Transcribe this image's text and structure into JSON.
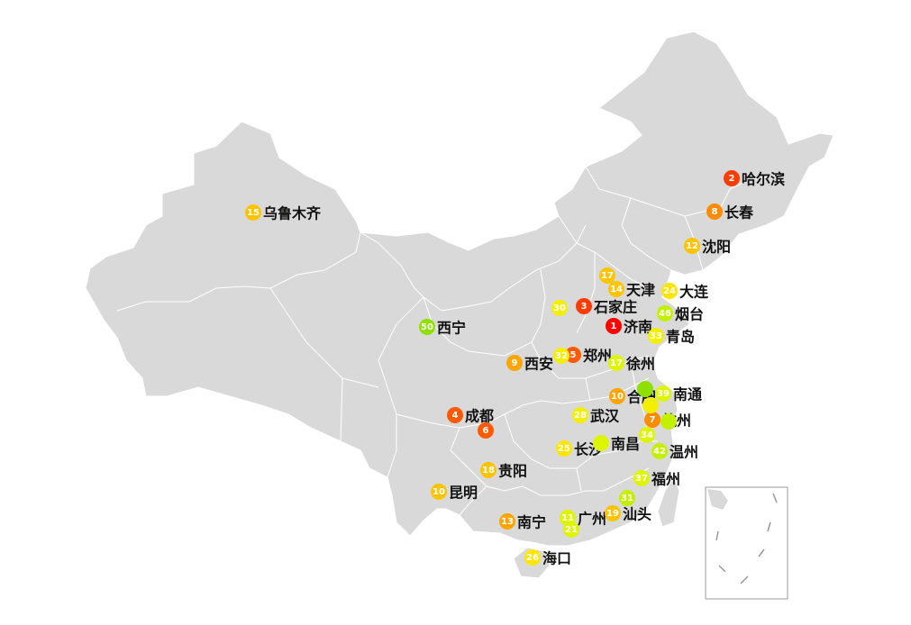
{
  "map": {
    "land_color": "#d9d9d9",
    "border_color": "#ffffff",
    "inset_border_color": "#999999"
  },
  "colors": {
    "red": "#ff0000",
    "red_orange": "#ff3c00",
    "orange_red": "#ff5a00",
    "orange": "#ff8c00",
    "orange_light": "#ffa500",
    "amber": "#ffc400",
    "yellow": "#ffe600",
    "yellow_light": "#f2f000",
    "lime_yellow": "#ddf500",
    "lime": "#c4f000",
    "green": "#8fe000"
  },
  "markers": [
    {
      "rank": "1",
      "city": "济南",
      "color": "red",
      "label": true
    },
    {
      "rank": "2",
      "city": "哈尔滨",
      "color": "red_orange",
      "label": true
    },
    {
      "rank": "3",
      "city": "石家庄",
      "color": "red_orange",
      "label": true
    },
    {
      "rank": "4",
      "city": "成都",
      "color": "orange_red",
      "label": true
    },
    {
      "rank": "5",
      "city": "郑州",
      "color": "orange_red",
      "label": true
    },
    {
      "rank": "6",
      "city": "",
      "color": "orange_red",
      "label": false
    },
    {
      "rank": "7",
      "city": "杭州",
      "color": "orange",
      "label": true
    },
    {
      "rank": "8",
      "city": "长春",
      "color": "orange",
      "label": true
    },
    {
      "rank": "9",
      "city": "西安",
      "color": "orange_light",
      "label": true
    },
    {
      "rank": "10",
      "city": "合肥",
      "color": "orange_light",
      "label": true
    },
    {
      "rank": "10",
      "city": "昆明",
      "color": "amber",
      "label": true
    },
    {
      "rank": "11",
      "city": "广州",
      "color": "lime_yellow",
      "label": true
    },
    {
      "rank": "12",
      "city": "沈阳",
      "color": "amber",
      "label": true
    },
    {
      "rank": "13",
      "city": "南宁",
      "color": "orange_light",
      "label": true
    },
    {
      "rank": "14",
      "city": "天津",
      "color": "amber",
      "label": true
    },
    {
      "rank": "15",
      "city": "乌鲁木齐",
      "color": "amber",
      "label": true
    },
    {
      "rank": "17",
      "city": "",
      "color": "amber",
      "label": false
    },
    {
      "rank": "17",
      "city": "徐州",
      "color": "lime_yellow",
      "label": true
    },
    {
      "rank": "18",
      "city": "贵阳",
      "color": "amber",
      "label": true
    },
    {
      "rank": "19",
      "city": "汕头",
      "color": "amber",
      "label": true
    },
    {
      "rank": "21",
      "city": "",
      "color": "lime_yellow",
      "label": false
    },
    {
      "rank": "24",
      "city": "大连",
      "color": "yellow",
      "label": true
    },
    {
      "rank": "25",
      "city": "长沙",
      "color": "yellow",
      "label": true
    },
    {
      "rank": "26",
      "city": "海口",
      "color": "yellow",
      "label": true
    },
    {
      "rank": "28",
      "city": "武汉",
      "color": "yellow_light",
      "label": true
    },
    {
      "rank": "30",
      "city": "",
      "color": "yellow_light",
      "label": false
    },
    {
      "rank": "31",
      "city": "",
      "color": "lime",
      "label": false
    },
    {
      "rank": "32",
      "city": "",
      "color": "yellow_light",
      "label": false
    },
    {
      "rank": "33",
      "city": "青岛",
      "color": "yellow_light",
      "label": true
    },
    {
      "rank": "34",
      "city": "",
      "color": "lime_yellow",
      "label": false
    },
    {
      "rank": "37",
      "city": "福州",
      "color": "lime_yellow",
      "label": true
    },
    {
      "rank": "39",
      "city": "南通",
      "color": "lime_yellow",
      "label": true
    },
    {
      "rank": "42",
      "city": "温州",
      "color": "lime",
      "label": true
    },
    {
      "rank": "46",
      "city": "烟台",
      "color": "lime",
      "label": true
    },
    {
      "rank": "50",
      "city": "西宁",
      "color": "green",
      "label": true
    },
    {
      "rank": "",
      "city": "南昌",
      "color": "lime_yellow",
      "label": true
    },
    {
      "rank": "",
      "city": "",
      "color": "lime",
      "label": false
    },
    {
      "rank": "",
      "city": "",
      "color": "green",
      "label": false
    },
    {
      "rank": "",
      "city": "",
      "color": "yellow_light",
      "label": false
    }
  ]
}
